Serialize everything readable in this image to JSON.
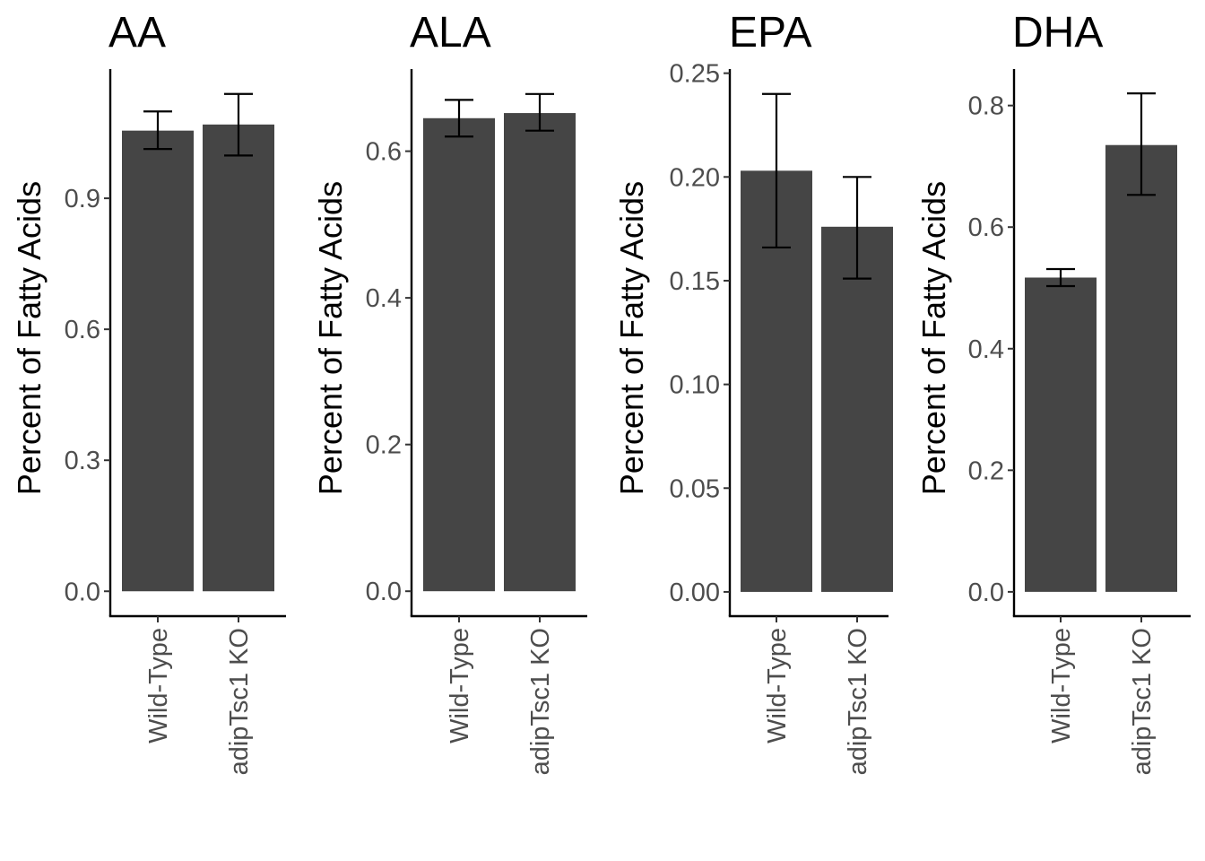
{
  "chart_data": [
    {
      "type": "bar",
      "title": "AA",
      "ylabel": "Percent of Fatty Acids",
      "xlabel": "",
      "categories": [
        "Wild-Type",
        "adipTsc1 KO"
      ],
      "values": [
        1.055,
        1.069
      ],
      "error_low": [
        1.013,
        0.998
      ],
      "error_high": [
        1.099,
        1.139
      ],
      "yticks": [
        0.0,
        0.3,
        0.6,
        0.9
      ],
      "ytick_labels": [
        "0.0",
        "0.3",
        "0.6",
        "0.9"
      ],
      "ylim": [
        -0.057,
        1.196
      ],
      "grid": false,
      "legend": "none"
    },
    {
      "type": "bar",
      "title": "ALA",
      "ylabel": "Percent of Fatty Acids",
      "xlabel": "",
      "categories": [
        "Wild-Type",
        "adipTsc1 KO"
      ],
      "values": [
        0.645,
        0.652
      ],
      "error_low": [
        0.62,
        0.628
      ],
      "error_high": [
        0.67,
        0.678
      ],
      "yticks": [
        0.0,
        0.2,
        0.4,
        0.6
      ],
      "ytick_labels": [
        "0.0",
        "0.2",
        "0.4",
        "0.6"
      ],
      "ylim": [
        -0.034,
        0.712
      ],
      "grid": false,
      "legend": "none"
    },
    {
      "type": "bar",
      "title": "EPA",
      "ylabel": "Percent of Fatty Acids",
      "xlabel": "",
      "categories": [
        "Wild-Type",
        "adipTsc1 KO"
      ],
      "values": [
        0.203,
        0.176
      ],
      "error_low": [
        0.166,
        0.151
      ],
      "error_high": [
        0.24,
        0.2
      ],
      "yticks": [
        0.0,
        0.05,
        0.1,
        0.15,
        0.2,
        0.25
      ],
      "ytick_labels": [
        "0.00",
        "0.05",
        "0.10",
        "0.15",
        "0.20",
        "0.25"
      ],
      "ylim": [
        -0.0117,
        0.252
      ],
      "grid": false,
      "legend": "none"
    },
    {
      "type": "bar",
      "title": "DHA",
      "ylabel": "Percent of Fatty Acids",
      "xlabel": "",
      "categories": [
        "Wild-Type",
        "adipTsc1 KO"
      ],
      "values": [
        0.517,
        0.735
      ],
      "error_low": [
        0.503,
        0.653
      ],
      "error_high": [
        0.531,
        0.82
      ],
      "yticks": [
        0.0,
        0.2,
        0.4,
        0.6,
        0.8
      ],
      "ytick_labels": [
        "0.0",
        "0.2",
        "0.4",
        "0.6",
        "0.8"
      ],
      "ylim": [
        -0.04,
        0.86
      ],
      "grid": false,
      "legend": "none"
    }
  ],
  "colors": {
    "bar_fill": "#454545",
    "axis_line": "#000000",
    "tick_text": "#4d4d4d",
    "title_text": "#000000"
  }
}
